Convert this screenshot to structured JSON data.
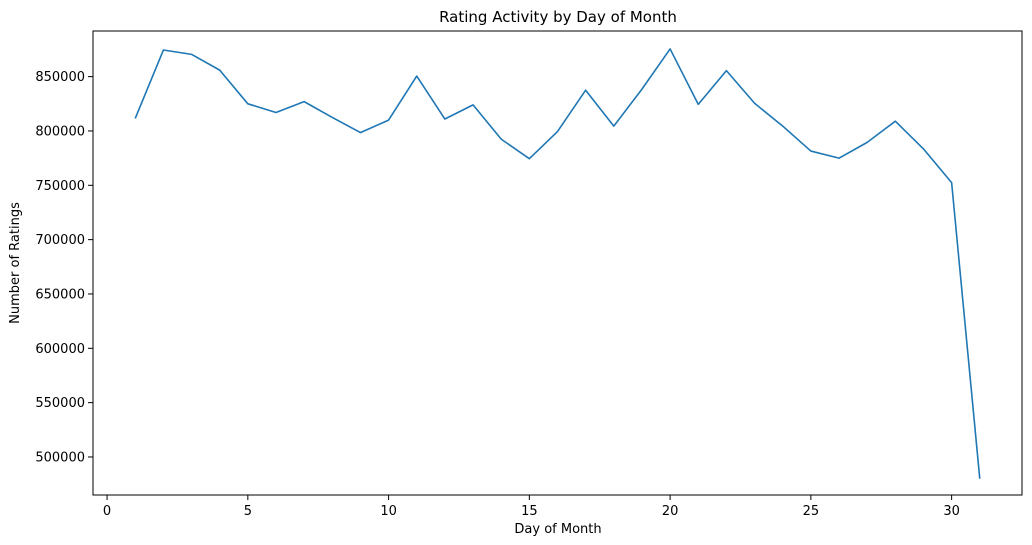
{
  "chart_data": {
    "type": "line",
    "title": "Rating Activity by Day of Month",
    "xlabel": "Day of Month",
    "ylabel": "Number of Ratings",
    "xlim": [
      -0.5,
      32.5
    ],
    "ylim": [
      465000,
      892000
    ],
    "xticks": [
      0,
      5,
      10,
      15,
      20,
      25,
      30
    ],
    "yticks": [
      500000,
      550000,
      600000,
      650000,
      700000,
      750000,
      800000,
      850000
    ],
    "grid": false,
    "legend": "none",
    "line_color": "#1f77b4",
    "series": [
      {
        "x": [
          1,
          2,
          3,
          4,
          5,
          6,
          7,
          8,
          9,
          10,
          11,
          12,
          13,
          14,
          15,
          16,
          17,
          18,
          19,
          20,
          21,
          22,
          23,
          24,
          25,
          26,
          27,
          28,
          29,
          30,
          31
        ],
        "values": [
          811500,
          874500,
          870500,
          856000,
          825000,
          817000,
          827000,
          812500,
          798500,
          810000,
          850500,
          811000,
          824000,
          792500,
          774500,
          799500,
          837500,
          804500,
          838500,
          875500,
          824500,
          855500,
          825500,
          804500,
          781500,
          775000,
          789500,
          809000,
          783500,
          752500,
          480000
        ]
      }
    ]
  }
}
